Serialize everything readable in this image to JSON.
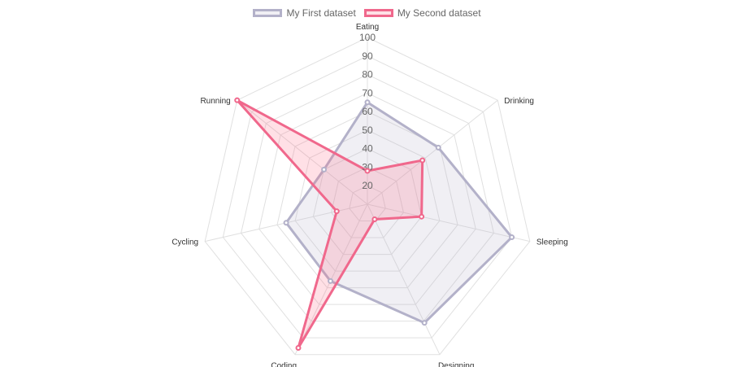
{
  "chart_data": {
    "type": "radar",
    "categories": [
      "Eating",
      "Drinking",
      "Sleeping",
      "Designing",
      "Coding",
      "Cycling",
      "Running"
    ],
    "r_ticks": [
      20,
      30,
      40,
      50,
      60,
      70,
      80,
      90,
      100
    ],
    "r_range": [
      10,
      100
    ],
    "grid": true,
    "legend_position": "top-center",
    "series": [
      {
        "name": "My First dataset",
        "values": [
          65,
          59,
          90,
          81,
          56,
          55,
          40
        ],
        "border_color": "#b3b1c9",
        "fill_color": "rgba(179,177,201,0.2)"
      },
      {
        "name": "My Second dataset",
        "values": [
          28,
          48,
          40,
          19,
          96,
          27,
          100
        ],
        "border_color": "#f0688c",
        "fill_color": "rgba(255,99,132,0.2)"
      }
    ]
  }
}
